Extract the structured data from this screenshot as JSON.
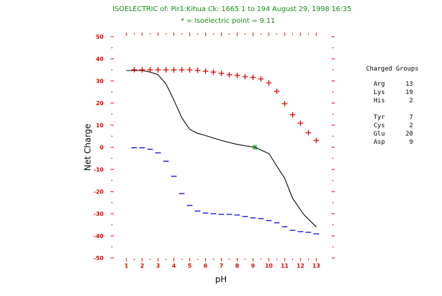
{
  "chart_data": {
    "type": "line",
    "title": "ISOELECTRIC of: Pir1:Kihua  Ck: 1665  1 to 194  August 29, 1998 16:35",
    "subtitle": "* = Isoelectric point = 9.11",
    "xlabel": "pH",
    "ylabel": "Net Charge",
    "xlim": [
      1,
      13
    ],
    "ylim": [
      -50,
      50
    ],
    "x_ticks": [
      "1",
      "2",
      "3",
      "4",
      "5",
      "6",
      "7",
      "8",
      "9",
      "10",
      "11",
      "12",
      "13"
    ],
    "y_ticks": [
      "50",
      "40",
      "30",
      "20",
      "10",
      "0",
      "-10",
      "-20",
      "-30",
      "-40",
      "-50"
    ],
    "isoelectric_point": 9.11,
    "series": [
      {
        "name": "Net Charge",
        "style": "line",
        "color": "#000000",
        "x": [
          1,
          2,
          2.5,
          3,
          3.5,
          4,
          4.5,
          5,
          5.5,
          6,
          7,
          8,
          9.11,
          10,
          10.5,
          11,
          11.5,
          12.2,
          13
        ],
        "values": [
          34.7,
          34.7,
          34.0,
          32.8,
          28.7,
          21.3,
          13.4,
          8.1,
          6.3,
          5.3,
          3.1,
          1.3,
          0,
          -2.8,
          -8.4,
          -14.0,
          -23.0,
          -30.3,
          -36.0
        ]
      },
      {
        "name": "Positive charge",
        "style": "plus",
        "color": "#e00000",
        "x": [
          1.5,
          2,
          2.5,
          3,
          3.5,
          4,
          4.5,
          5,
          5.5,
          6,
          6.5,
          7,
          7.5,
          8,
          8.5,
          9,
          9.5,
          10,
          10.5,
          11,
          11.5,
          12,
          12.5,
          13
        ],
        "values": [
          35.0,
          35.0,
          35.0,
          35.0,
          35.0,
          35.0,
          35.0,
          35.0,
          34.8,
          34.4,
          34.0,
          33.4,
          32.8,
          32.5,
          31.9,
          31.6,
          30.9,
          29.1,
          25.3,
          19.7,
          14.7,
          10.9,
          6.6,
          3.1
        ]
      },
      {
        "name": "Negative charge",
        "style": "minus",
        "color": "#0000e0",
        "x": [
          1.5,
          2,
          2.5,
          3,
          3.5,
          4,
          4.5,
          5,
          5.5,
          6,
          6.5,
          7,
          7.5,
          8,
          8.5,
          9,
          9.5,
          10,
          10.5,
          11,
          11.5,
          12,
          12.5,
          13
        ],
        "values": [
          -0.2,
          -0.2,
          -0.9,
          -2.5,
          -6.3,
          -13.1,
          -20.9,
          -26.3,
          -28.8,
          -29.7,
          -30.0,
          -30.3,
          -30.3,
          -30.6,
          -31.3,
          -31.9,
          -32.2,
          -33.1,
          -34.1,
          -35.9,
          -37.5,
          -38.1,
          -38.4,
          -39.1
        ]
      }
    ],
    "legend": {
      "title": "Charged Groups",
      "groups": [
        [
          {
            "name": "Arg",
            "count": "13"
          },
          {
            "name": "Lys",
            "count": "19"
          },
          {
            "name": "His",
            "count": "2"
          }
        ],
        [
          {
            "name": "Tyr",
            "count": "7"
          },
          {
            "name": "Cys",
            "count": "2"
          },
          {
            "name": "Glu",
            "count": "20"
          },
          {
            "name": "Asp",
            "count": "9"
          }
        ]
      ]
    },
    "colors": {
      "title": "#118a11",
      "axis": "#e00000",
      "star": "#118a11"
    }
  }
}
